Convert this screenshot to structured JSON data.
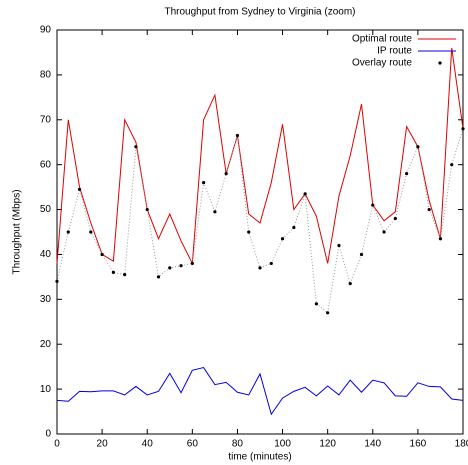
{
  "chart_data": {
    "type": "line",
    "title": "Throughput from Sydney to Virginia (zoom)",
    "xlabel": "time (minutes)",
    "ylabel": "Throughput (Mbps)",
    "x": [
      0,
      5,
      10,
      15,
      20,
      25,
      30,
      35,
      40,
      45,
      50,
      55,
      60,
      65,
      70,
      75,
      80,
      85,
      90,
      95,
      100,
      105,
      110,
      115,
      120,
      125,
      130,
      135,
      140,
      145,
      150,
      155,
      160,
      165,
      170,
      175,
      180
    ],
    "series": [
      {
        "name": "Optimal route",
        "color": "#e00000",
        "style": "solid",
        "values": [
          38,
          70,
          55,
          47,
          40,
          38.5,
          70,
          65,
          50,
          43.5,
          49,
          43,
          38,
          70,
          75.5,
          58,
          66.5,
          49,
          47,
          56,
          69,
          50,
          53.5,
          48.5,
          38,
          53,
          62,
          73.5,
          51,
          47.5,
          49.5,
          68.5,
          64,
          52,
          43.5,
          86,
          68
        ]
      },
      {
        "name": "IP route",
        "color": "#0000e0",
        "style": "solid",
        "values": [
          7.5,
          7.3,
          9.5,
          9.4,
          9.6,
          9.6,
          8.7,
          10.6,
          8.7,
          9.5,
          13.5,
          9.2,
          14.2,
          14.8,
          11,
          11.5,
          9.3,
          8.7,
          13.4,
          4.4,
          8,
          9.5,
          10.4,
          8.5,
          10.7,
          8.7,
          12,
          9.3,
          12,
          11.4,
          8.5,
          8.4,
          11.4,
          10.6,
          10.5,
          7.8,
          7.5
        ]
      },
      {
        "name": "Overlay route",
        "color": "#000000",
        "style": "dots",
        "values": [
          34,
          45,
          54.5,
          45,
          40,
          36,
          35.5,
          64,
          50,
          35,
          37,
          37.5,
          38,
          56,
          49.5,
          58,
          66.5,
          45,
          37,
          38,
          43.5,
          46,
          53.5,
          29,
          27,
          42,
          33.5,
          40,
          51,
          45,
          48,
          58,
          64,
          50,
          43.5,
          60,
          68
        ]
      }
    ],
    "xlim": [
      0,
      180
    ],
    "ylim": [
      0,
      90
    ],
    "xticks": [
      0,
      20,
      40,
      60,
      80,
      100,
      120,
      140,
      160,
      180
    ],
    "yticks": [
      0,
      10,
      20,
      30,
      40,
      50,
      60,
      70,
      80,
      90
    ],
    "legend": "upper right"
  }
}
